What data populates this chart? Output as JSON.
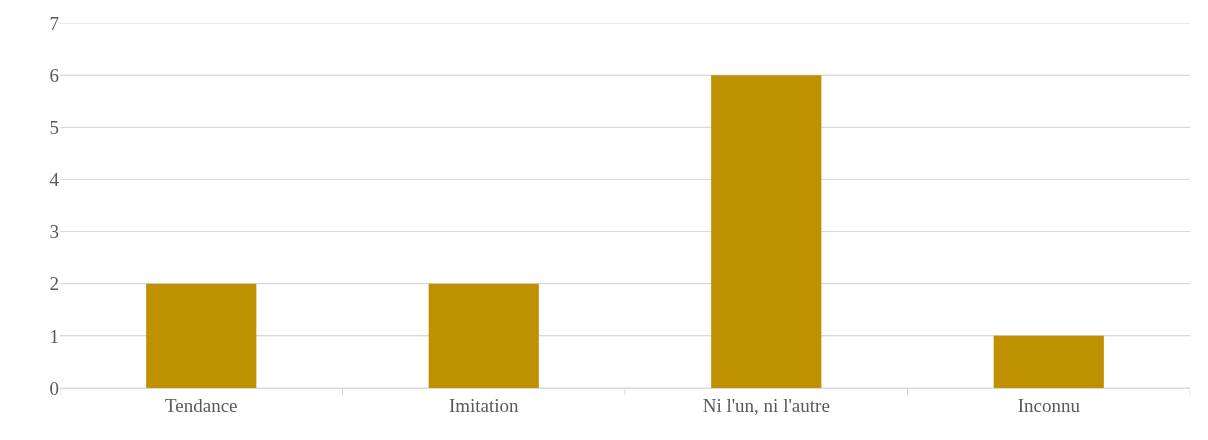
{
  "chart_data": {
    "type": "bar",
    "categories": [
      "Tendance",
      "Imitation",
      "Ni l'un, ni l'autre",
      "Inconnu"
    ],
    "values": [
      2,
      2,
      6,
      1
    ],
    "color": "#bf9000",
    "ylim": [
      0,
      7
    ],
    "yticks": [
      0,
      1,
      2,
      3,
      4,
      5,
      6,
      7
    ],
    "grid": "y"
  }
}
